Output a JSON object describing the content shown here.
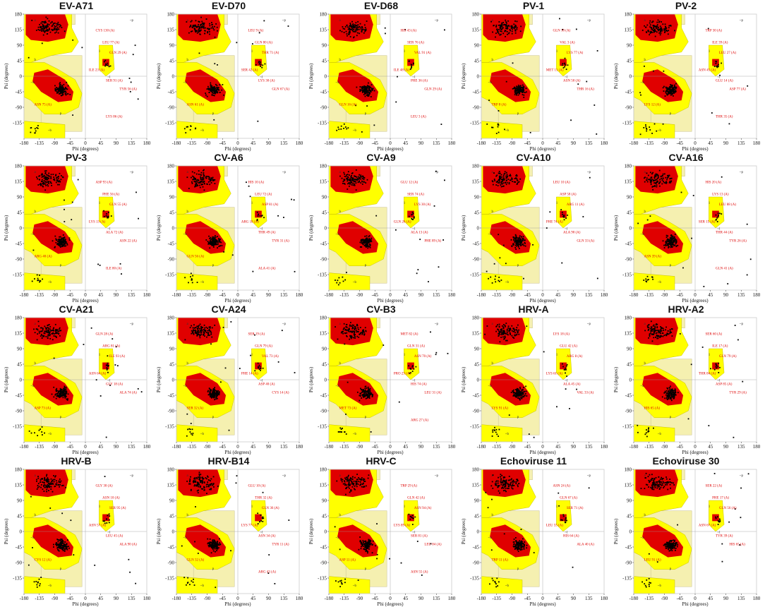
{
  "colors": {
    "core": "#e00000",
    "allowed": "#ffff00",
    "generous": "#f5f0b0",
    "frame": "#cccccc",
    "points": "#000000",
    "labels": "#dd0000"
  },
  "axes": {
    "xlabel": "Phi (degrees)",
    "ylabel": "Psi (degrees)",
    "xlim": [
      -180,
      180
    ],
    "ylim": [
      -180,
      180
    ],
    "xticks": [
      -180,
      -135,
      -90,
      -45,
      0,
      45,
      90,
      135,
      180
    ],
    "yticks": [
      180,
      135,
      90,
      45,
      0,
      -45,
      -90,
      -135
    ]
  },
  "chart_data": {
    "type": "scatter",
    "layout": "grid 4 rows x 5 columns of Ramachandran plots",
    "region_letters": [
      "a",
      "b",
      "l",
      "p",
      "~a",
      "~b",
      "~l",
      "~p"
    ],
    "plots": [
      {
        "title": "EV-A71",
        "labels": [
          "CYS 130 (A)",
          "LEU 77 (A)",
          "GLN 29 (A)",
          "ILE 23 (A)",
          "SER 91 (A)",
          "TYR 56 (A)",
          "ASN 75 (A)",
          "LYS 86 (A)"
        ]
      },
      {
        "title": "EV-D70",
        "labels": [
          "LEU 9 (A)",
          "GLN 80 (A)",
          "THR 71 (A)",
          "SER 42 (A)",
          "LYS 30 (A)",
          "GLN 67 (A)",
          "ASN 61 (A)"
        ]
      },
      {
        "title": "EV-D68",
        "labels": [
          "HIS 43 (A)",
          "SER 76 (A)",
          "VAL 91 (A)",
          "ILE 48 (A)",
          "PHE 36 (A)",
          "GLN 29 (A)",
          "GLN 16 (A)",
          "LEU 3 (A)"
        ]
      },
      {
        "title": "PV-1",
        "labels": [
          "GLN 10 (A)",
          "VAL 3 (A)",
          "LYS 77 (A)",
          "MET 11 (A)",
          "ASN 50 (A)",
          "THR 16 (A)",
          "TRP 8 (A)"
        ]
      },
      {
        "title": "PV-2",
        "labels": [
          "TRP 30 (A)",
          "ILE 39 (A)",
          "LEU 27 (A)",
          "ASN 45 (A)",
          "GLU 14 (A)",
          "ASP 77 (A)",
          "LYS 12 (A)",
          "THR 35 (A)"
        ]
      },
      {
        "title": "PV-3",
        "labels": [
          "ASP 93 (A)",
          "PHE 56 (A)",
          "GLN 55 (A)",
          "LYS 13 (A)",
          "ALA 72 (A)",
          "ASN 22 (A)",
          "ARG 40 (A)",
          "ILE 80 (A)"
        ]
      },
      {
        "title": "CV-A6",
        "labels": [
          "HIS 10 (A)",
          "LEU 72 (A)",
          "ASP 81 (A)",
          "ARG 18 (A)",
          "THR 49 (A)",
          "TYR 31 (A)",
          "GLN 56 (A)",
          "ALA 41 (A)"
        ]
      },
      {
        "title": "CV-A9",
        "labels": [
          "GLU 12 (A)",
          "SER 74 (A)",
          "LYS 30 (A)",
          "GLN 26 (A)",
          "ALA 13 (A)",
          "PHE 89 (A)"
        ]
      },
      {
        "title": "CV-A10",
        "labels": [
          "LEU 10 (A)",
          "ASP 58 (A)",
          "ARG 11 (A)",
          "PHE 74 (A)",
          "ALA 90 (A)",
          "GLN 33 (A)"
        ]
      },
      {
        "title": "CV-A16",
        "labels": [
          "HIS 20 (A)",
          "LYS 13 (A)",
          "LEU 88 (A)",
          "SER 15 (A)",
          "THR 44 (A)",
          "TYR 26 (A)",
          "ASN 39 (A)",
          "GLN 41 (A)"
        ]
      },
      {
        "title": "CV-A21",
        "labels": [
          "GLN 28 (A)",
          "ARG 81 (A)",
          "ILE 93 (A)",
          "ASN 64 (A)",
          "GLY 18 (A)",
          "ALA 74 (A)",
          "ASP 73 (A)"
        ]
      },
      {
        "title": "CV-A24",
        "labels": [
          "SER 19 (A)",
          "GLN 79 (A)",
          "VAL 73 (A)",
          "PHE 14 (A)",
          "ASP 40 (A)",
          "CYS 14 (A)",
          "SER 32 (A)"
        ]
      },
      {
        "title": "CV-B3",
        "labels": [
          "MET 82 (A)",
          "GLN 31 (A)",
          "ASN 70 (A)",
          "PRO 23 (A)",
          "HIS 74 (A)",
          "LEU 31 (A)",
          "MET 73 (A)",
          "ARG 27 (A)"
        ]
      },
      {
        "title": "HRV-A",
        "labels": [
          "LYS 18 (A)",
          "GLU 42 (A)",
          "ARG 8 (A)",
          "LYS 61 (A)",
          "ALA 45 (A)",
          "VAL 33 (A)",
          "LYS 91 (A)"
        ]
      },
      {
        "title": "HRV-A2",
        "labels": [
          "SER 60 (A)",
          "ILE 17 (A)",
          "GLN 79 (A)",
          "THR 84 (A)",
          "ASP 85 (A)",
          "TYR 29 (A)",
          "HIS 65 (A)"
        ]
      },
      {
        "title": "HRV-B",
        "labels": [
          "GLY 30 (A)",
          "ASN 10 (A)",
          "SER 95 (A)",
          "ASN 57 (A)",
          "LEU 45 (A)",
          "ALA 90 (A)",
          "CYS 12 (A)"
        ]
      },
      {
        "title": "HRV-B14",
        "labels": [
          "GLU 10 (A)",
          "THR 32 (A)",
          "GLN 36 (A)",
          "LYS 77 (A)",
          "ASN 34 (A)",
          "TYR 11 (A)",
          "GLN 32 (A)",
          "ARG 43 (A)"
        ]
      },
      {
        "title": "HRV-C",
        "labels": [
          "TRP 29 (A)",
          "GLN 42 (A)",
          "ASN 94 (A)",
          "LYS 89 (A)",
          "SER 81 (A)",
          "LEU 84 (A)",
          "ASP 11 (A)",
          "ASN 55 (A)"
        ]
      },
      {
        "title": "Echoviruse 11",
        "labels": [
          "ASN 24 (A)",
          "GLN 67 (A)",
          "SER 71 (A)",
          "LEU 55 (A)",
          "HIS 64 (A)",
          "ALA 40 (A)",
          "TRP 11 (A)"
        ]
      },
      {
        "title": "Echoviruse 30",
        "labels": [
          "SER 22 (A)",
          "PHE 17 (A)",
          "GLN 56 (A)",
          "ASN 67 (A)",
          "TYR 39 (A)",
          "HIS 65 (A)",
          "LEU 91 (A)"
        ]
      }
    ]
  }
}
